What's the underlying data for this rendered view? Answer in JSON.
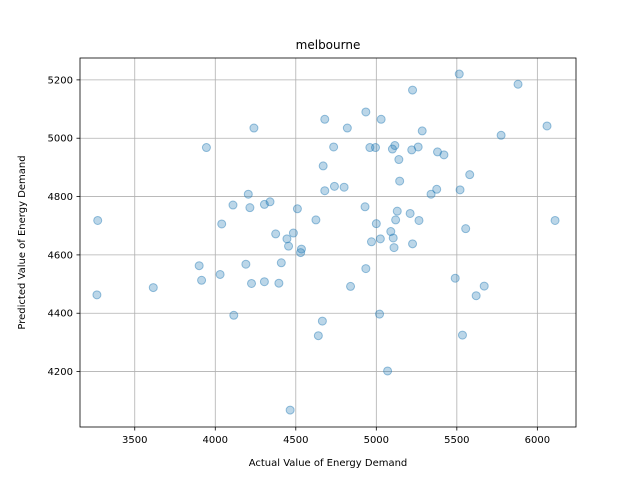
{
  "chart_data": {
    "type": "scatter",
    "title": "melbourne",
    "xlabel": "Actual Value of Energy Demand",
    "ylabel": "Predicted Value of Energy Demand",
    "xlim": [
      3160,
      6240
    ],
    "ylim": [
      4010,
      5275
    ],
    "xticks": [
      3500,
      4000,
      4500,
      5000,
      5500,
      6000
    ],
    "yticks": [
      4200,
      4400,
      4600,
      4800,
      5000,
      5200
    ],
    "grid": true,
    "marker_color": "#1f77b4",
    "marker_alpha": 0.3,
    "points": [
      {
        "x": 3270,
        "y": 4718
      },
      {
        "x": 3265,
        "y": 4463
      },
      {
        "x": 3615,
        "y": 4488
      },
      {
        "x": 3900,
        "y": 4563
      },
      {
        "x": 3915,
        "y": 4513
      },
      {
        "x": 3945,
        "y": 4968
      },
      {
        "x": 4030,
        "y": 4533
      },
      {
        "x": 4040,
        "y": 4706
      },
      {
        "x": 4110,
        "y": 4771
      },
      {
        "x": 4115,
        "y": 4393
      },
      {
        "x": 4190,
        "y": 4568
      },
      {
        "x": 4205,
        "y": 4808
      },
      {
        "x": 4215,
        "y": 4762
      },
      {
        "x": 4225,
        "y": 4502
      },
      {
        "x": 4240,
        "y": 5035
      },
      {
        "x": 4305,
        "y": 4508
      },
      {
        "x": 4305,
        "y": 4773
      },
      {
        "x": 4340,
        "y": 4782
      },
      {
        "x": 4375,
        "y": 4672
      },
      {
        "x": 4395,
        "y": 4503
      },
      {
        "x": 4410,
        "y": 4573
      },
      {
        "x": 4445,
        "y": 4655
      },
      {
        "x": 4455,
        "y": 4630
      },
      {
        "x": 4465,
        "y": 4068
      },
      {
        "x": 4485,
        "y": 4675
      },
      {
        "x": 4510,
        "y": 4758
      },
      {
        "x": 4530,
        "y": 4608
      },
      {
        "x": 4535,
        "y": 4620
      },
      {
        "x": 4625,
        "y": 4720
      },
      {
        "x": 4640,
        "y": 4323
      },
      {
        "x": 4665,
        "y": 4373
      },
      {
        "x": 4670,
        "y": 4905
      },
      {
        "x": 4680,
        "y": 4820
      },
      {
        "x": 4680,
        "y": 5065
      },
      {
        "x": 4735,
        "y": 4970
      },
      {
        "x": 4740,
        "y": 4835
      },
      {
        "x": 4800,
        "y": 4832
      },
      {
        "x": 4820,
        "y": 5035
      },
      {
        "x": 4840,
        "y": 4492
      },
      {
        "x": 4930,
        "y": 4765
      },
      {
        "x": 4935,
        "y": 5090
      },
      {
        "x": 4935,
        "y": 4553
      },
      {
        "x": 4960,
        "y": 4968
      },
      {
        "x": 4970,
        "y": 4645
      },
      {
        "x": 4995,
        "y": 4968
      },
      {
        "x": 5000,
        "y": 4707
      },
      {
        "x": 5020,
        "y": 4397
      },
      {
        "x": 5025,
        "y": 4655
      },
      {
        "x": 5030,
        "y": 5065
      },
      {
        "x": 5070,
        "y": 4202
      },
      {
        "x": 5090,
        "y": 4680
      },
      {
        "x": 5100,
        "y": 4963
      },
      {
        "x": 5105,
        "y": 4658
      },
      {
        "x": 5110,
        "y": 4625
      },
      {
        "x": 5115,
        "y": 4975
      },
      {
        "x": 5120,
        "y": 4720
      },
      {
        "x": 5130,
        "y": 4750
      },
      {
        "x": 5140,
        "y": 4927
      },
      {
        "x": 5145,
        "y": 4853
      },
      {
        "x": 5210,
        "y": 4742
      },
      {
        "x": 5220,
        "y": 4960
      },
      {
        "x": 5225,
        "y": 4638
      },
      {
        "x": 5225,
        "y": 5165
      },
      {
        "x": 5260,
        "y": 4970
      },
      {
        "x": 5265,
        "y": 4718
      },
      {
        "x": 5285,
        "y": 5025
      },
      {
        "x": 5340,
        "y": 4808
      },
      {
        "x": 5375,
        "y": 4825
      },
      {
        "x": 5380,
        "y": 4953
      },
      {
        "x": 5420,
        "y": 4943
      },
      {
        "x": 5490,
        "y": 4520
      },
      {
        "x": 5515,
        "y": 5220
      },
      {
        "x": 5520,
        "y": 4823
      },
      {
        "x": 5535,
        "y": 4325
      },
      {
        "x": 5555,
        "y": 4690
      },
      {
        "x": 5580,
        "y": 4875
      },
      {
        "x": 5620,
        "y": 4460
      },
      {
        "x": 5670,
        "y": 4493
      },
      {
        "x": 5775,
        "y": 5010
      },
      {
        "x": 5880,
        "y": 5185
      },
      {
        "x": 6060,
        "y": 5042
      },
      {
        "x": 6110,
        "y": 4718
      }
    ]
  }
}
